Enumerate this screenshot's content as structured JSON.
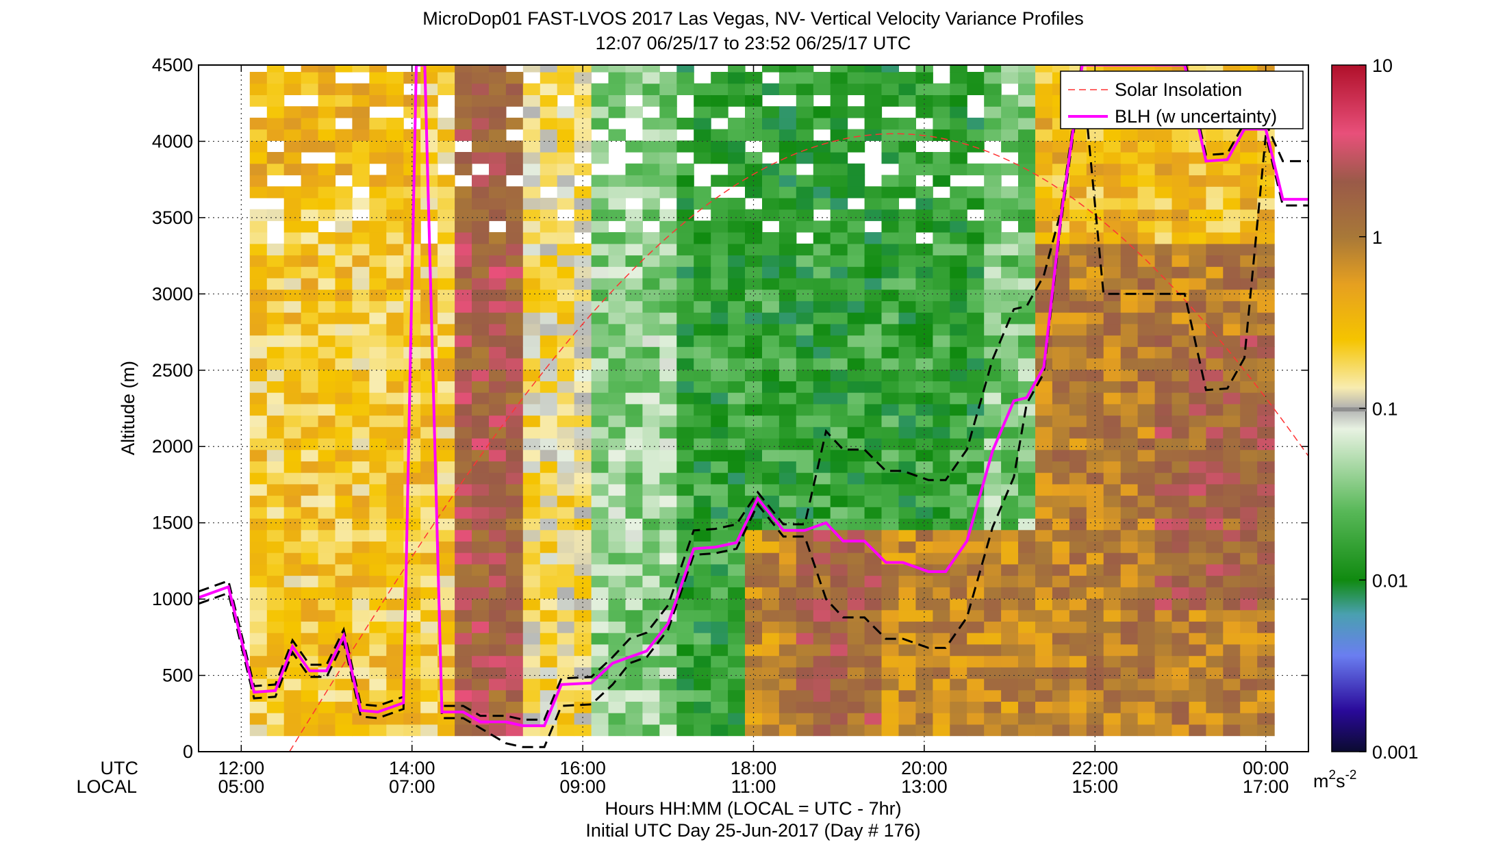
{
  "chart_data": {
    "type": "heatmap",
    "title": "MicroDop01 FAST-LVOS 2017 Las Vegas, NV- Vertical Velocity Variance Profiles",
    "subtitle": "12:07 06/25/17 to 23:52 06/25/17  UTC",
    "xlabel": "Hours HH:MM  (LOCAL = UTC - 7hr)",
    "xlabel2": "Initial UTC Day 25-Jun-2017 (Day # 176)",
    "ylabel": "Altitude (m)",
    "utc_row_label": "UTC",
    "local_row_label": "LOCAL",
    "xlim_hours": [
      11.5,
      24.5
    ],
    "ylim": [
      0,
      4500
    ],
    "y_ticks": [
      0,
      500,
      1000,
      1500,
      2000,
      2500,
      3000,
      3500,
      4000,
      4500
    ],
    "x_ticks": [
      {
        "hour": 12,
        "utc": "12:00",
        "local": "05:00"
      },
      {
        "hour": 14,
        "utc": "14:00",
        "local": "07:00"
      },
      {
        "hour": 16,
        "utc": "16:00",
        "local": "09:00"
      },
      {
        "hour": 18,
        "utc": "18:00",
        "local": "11:00"
      },
      {
        "hour": 20,
        "utc": "20:00",
        "local": "13:00"
      },
      {
        "hour": 22,
        "utc": "22:00",
        "local": "15:00"
      },
      {
        "hour": 24,
        "utc": "00:00",
        "local": "17:00"
      }
    ],
    "colorbar": {
      "scale": "log",
      "range": [
        0.001,
        10
      ],
      "ticks": [
        "10",
        "1",
        "0.1",
        "0.01",
        "0.001"
      ],
      "unit_base": "m",
      "unit_sup1": "2",
      "unit_mid": "s",
      "unit_sup2": "-2"
    },
    "grid": true,
    "legend_position": "top-right",
    "legend": [
      {
        "label": "Solar Insolation",
        "color": "#ff3333",
        "style": "dashed"
      },
      {
        "label": "BLH (w uncertainty)",
        "color": "#ff00ff",
        "style": "solid"
      }
    ],
    "blh": {
      "hours": [
        11.5,
        11.85,
        12.15,
        12.4,
        12.6,
        12.8,
        13.0,
        13.2,
        13.4,
        13.6,
        13.9,
        14.05,
        14.15,
        14.35,
        14.6,
        14.8,
        15.1,
        15.3,
        15.55,
        15.75,
        16.1,
        16.35,
        16.55,
        16.75,
        17.0,
        17.3,
        17.55,
        17.8,
        18.05,
        18.35,
        18.6,
        18.85,
        19.05,
        19.3,
        19.55,
        19.75,
        20.05,
        20.25,
        20.5,
        20.8,
        21.05,
        21.2,
        21.4,
        21.6,
        21.85,
        22.1,
        22.3,
        22.55,
        22.8,
        23.05,
        23.3,
        23.55,
        23.75,
        24.0,
        24.2,
        24.5
      ],
      "altitude": [
        1010,
        1080,
        390,
        400,
        690,
        530,
        530,
        760,
        270,
        260,
        320,
        4500,
        4500,
        260,
        260,
        195,
        195,
        170,
        170,
        440,
        450,
        580,
        620,
        660,
        840,
        1330,
        1340,
        1370,
        1660,
        1450,
        1450,
        1500,
        1380,
        1380,
        1240,
        1240,
        1180,
        1180,
        1380,
        1970,
        2300,
        2320,
        2520,
        3500,
        4500,
        4500,
        4500,
        4500,
        4500,
        4500,
        3870,
        3880,
        4080,
        4080,
        3620,
        3620
      ]
    }
  }
}
